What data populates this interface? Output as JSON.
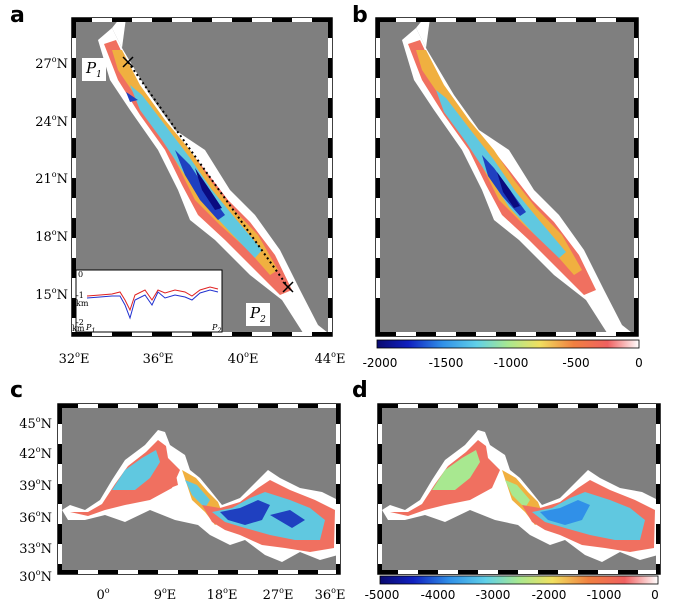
{
  "panels": {
    "a": {
      "letter": "a"
    },
    "b": {
      "letter": "b"
    },
    "c": {
      "letter": "c"
    },
    "d": {
      "letter": "d"
    }
  },
  "red_sea": {
    "lat_ticks": [
      "27",
      "24",
      "21",
      "18",
      "15"
    ],
    "lon_ticks": [
      "32",
      "36",
      "40",
      "44"
    ],
    "deg": "o",
    "north": "N",
    "east": "E",
    "point1": {
      "main": "P",
      "sub": "1"
    },
    "point2": {
      "main": "P",
      "sub": "2"
    },
    "colorbar": {
      "ticks": [
        "-2000",
        "-1500",
        "-1000",
        "-500",
        "0"
      ],
      "min": -2000,
      "max": 0
    }
  },
  "inset": {
    "y_ticks": [
      "0",
      "-1",
      "-2"
    ],
    "y_unit": "km",
    "x_start": "P",
    "x_start_sub": "1",
    "x_end": "P",
    "x_end_sub": "2",
    "bottom_left": "km",
    "line_colors": {
      "red": "#e02020",
      "blue": "#2030d0"
    }
  },
  "mediterranean": {
    "lat_ticks": [
      "45",
      "42",
      "39",
      "36",
      "33",
      "30"
    ],
    "lon_ticks": [
      "0",
      "9",
      "18",
      "27",
      "36"
    ],
    "lon_tick_suffix": [
      "",
      "E",
      "E",
      "E",
      "E"
    ],
    "colorbar": {
      "ticks": [
        "-5000",
        "-4000",
        "-3000",
        "-2000",
        "-1000",
        "0"
      ],
      "min": -5000,
      "max": 0
    }
  },
  "colors": {
    "land": "#7f7f7f",
    "deep": "#1f1fb0",
    "mid": "#50c8e8",
    "shallow": "#f06040",
    "coast": "#ffffff"
  }
}
